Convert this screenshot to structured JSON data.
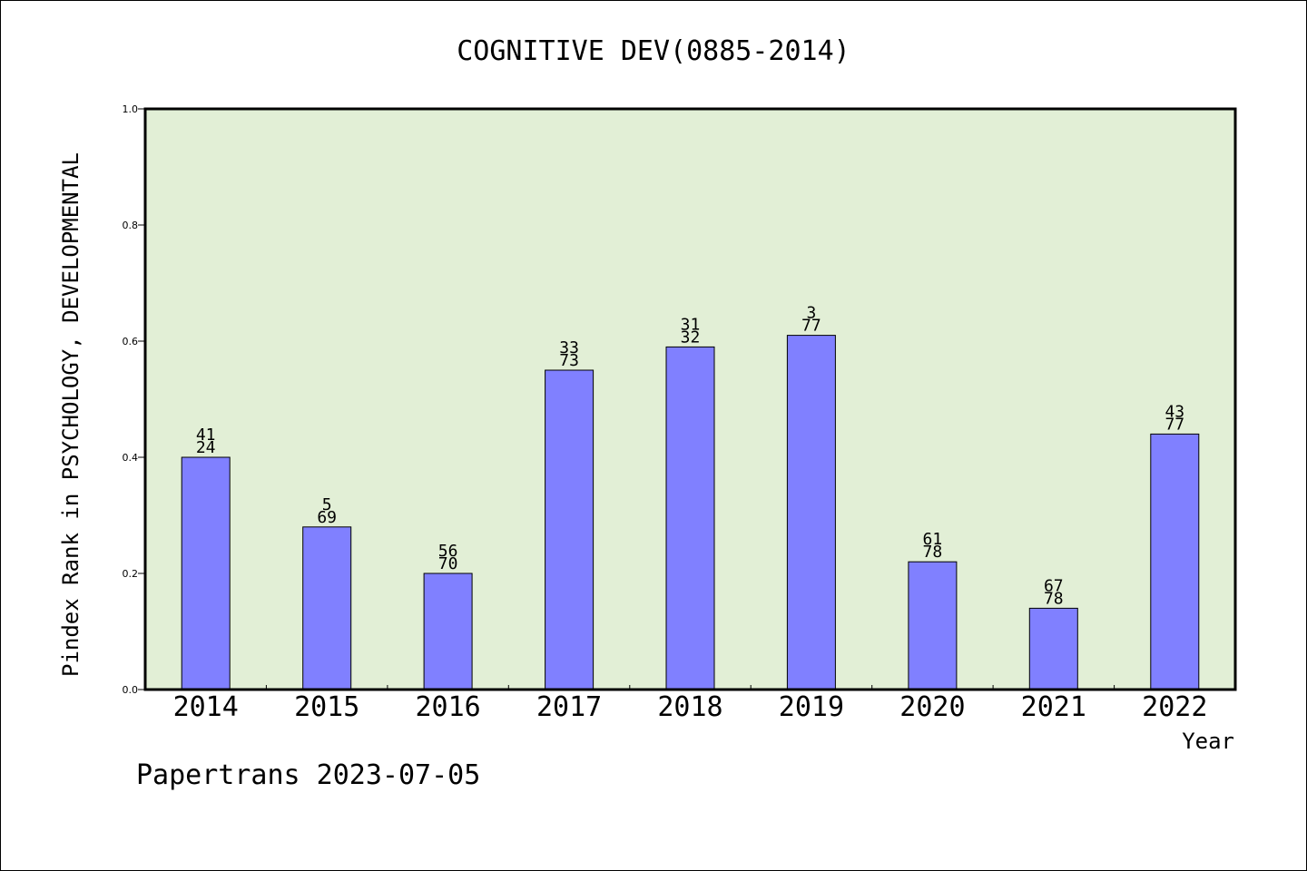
{
  "chart_data": {
    "type": "bar",
    "title": "COGNITIVE DEV(0885-2014)",
    "ylabel": "Pindex Rank in PSYCHOLOGY, DEVELOPMENTAL",
    "xlabel": "Year",
    "categories": [
      "2014",
      "2015",
      "2016",
      "2017",
      "2018",
      "2019",
      "2020",
      "2021",
      "2022"
    ],
    "values": [
      0.4,
      0.28,
      0.2,
      0.55,
      0.59,
      0.61,
      0.22,
      0.14,
      0.44
    ],
    "labels_top": [
      "41",
      "5",
      "56",
      "33",
      "31",
      "3",
      "61",
      "67",
      "43"
    ],
    "labels_bottom": [
      "24",
      "69",
      "70",
      "73",
      "32",
      "77",
      "78",
      "78",
      "77"
    ],
    "ylim": [
      0,
      1.0
    ],
    "yticks": [
      "0.0",
      "0.2",
      "0.4",
      "0.6",
      "0.8",
      "1.0"
    ],
    "grid": false,
    "bar_color": "#8080ff",
    "plot_background": "#e2efd6"
  },
  "footer": "Papertrans 2023-07-05"
}
